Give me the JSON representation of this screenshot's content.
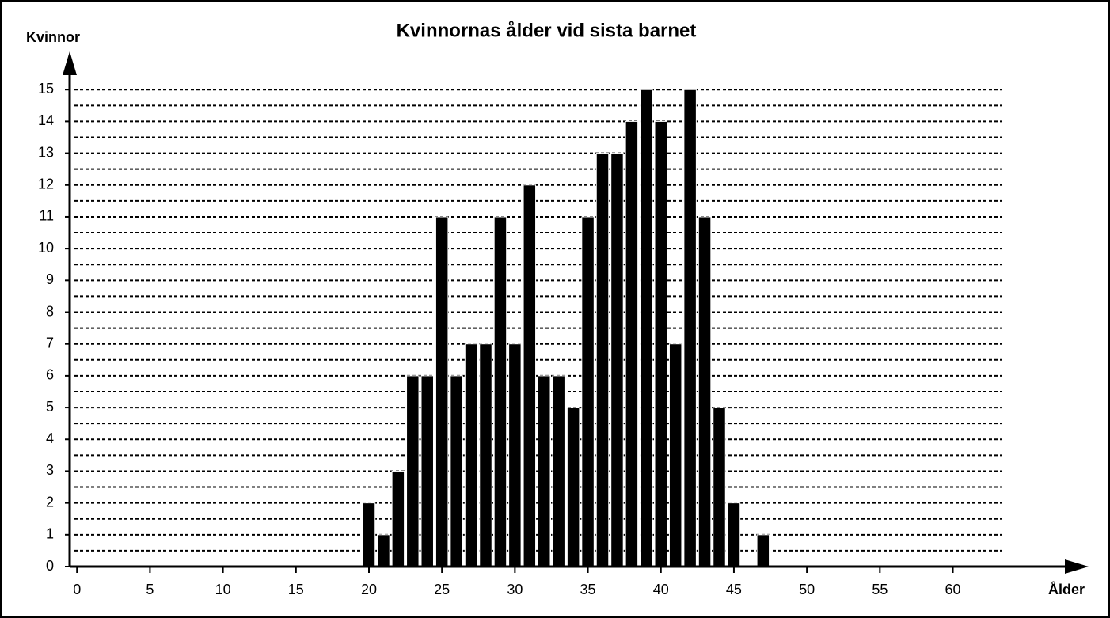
{
  "chart_data": {
    "type": "bar",
    "title": "Kvinnornas ålder vid sista barnet",
    "y_label": "Kvinnor",
    "x_label": "Ålder",
    "x": [
      20,
      21,
      22,
      23,
      24,
      25,
      26,
      27,
      28,
      29,
      30,
      31,
      32,
      33,
      34,
      35,
      36,
      37,
      38,
      39,
      40,
      41,
      42,
      43,
      44,
      45,
      46,
      47
    ],
    "values": [
      2,
      1,
      3,
      6,
      6,
      11,
      6,
      7,
      7,
      11,
      7,
      12,
      6,
      6,
      5,
      11,
      13,
      13,
      14,
      15,
      14,
      7,
      15,
      11,
      5,
      2,
      0,
      1
    ],
    "color": "#000000",
    "xlim": [
      -0.5,
      69.3
    ],
    "xticks": [
      0,
      5,
      10,
      15,
      20,
      25,
      30,
      35,
      40,
      45,
      50,
      55,
      60
    ],
    "ylim": [
      0,
      16.2
    ],
    "yticks": [
      0,
      1,
      2,
      3,
      4,
      5,
      6,
      7,
      8,
      9,
      10,
      11,
      12,
      13,
      14,
      15
    ],
    "grid": true
  }
}
